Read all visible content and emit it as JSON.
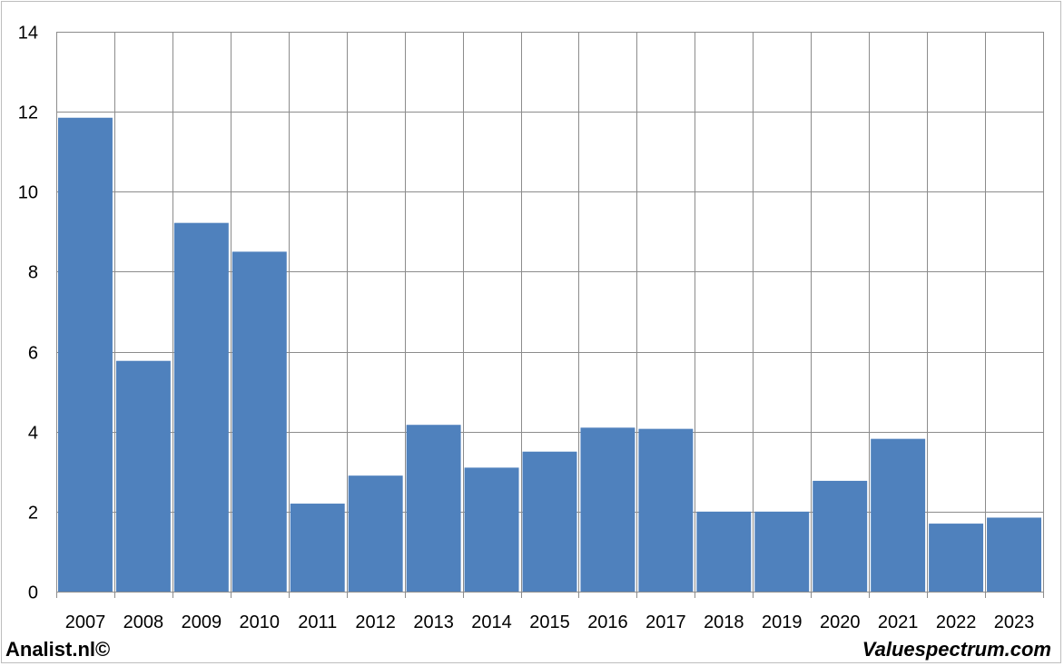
{
  "chart_data": {
    "type": "bar",
    "categories": [
      "2007",
      "2008",
      "2009",
      "2010",
      "2011",
      "2012",
      "2013",
      "2014",
      "2015",
      "2016",
      "2017",
      "2018",
      "2019",
      "2020",
      "2021",
      "2022",
      "2023"
    ],
    "values": [
      11.85,
      5.77,
      9.22,
      8.5,
      2.2,
      2.9,
      4.17,
      3.1,
      3.5,
      4.1,
      4.07,
      2.0,
      2.0,
      2.77,
      3.82,
      1.7,
      1.85
    ],
    "ylim": [
      0,
      14
    ],
    "yticks": [
      0,
      2,
      4,
      6,
      8,
      10,
      12,
      14
    ],
    "grid": true,
    "bar_color": "#4f81bd"
  },
  "footer": {
    "left": "Analist.nl©",
    "right": "Valuespectrum.com"
  }
}
